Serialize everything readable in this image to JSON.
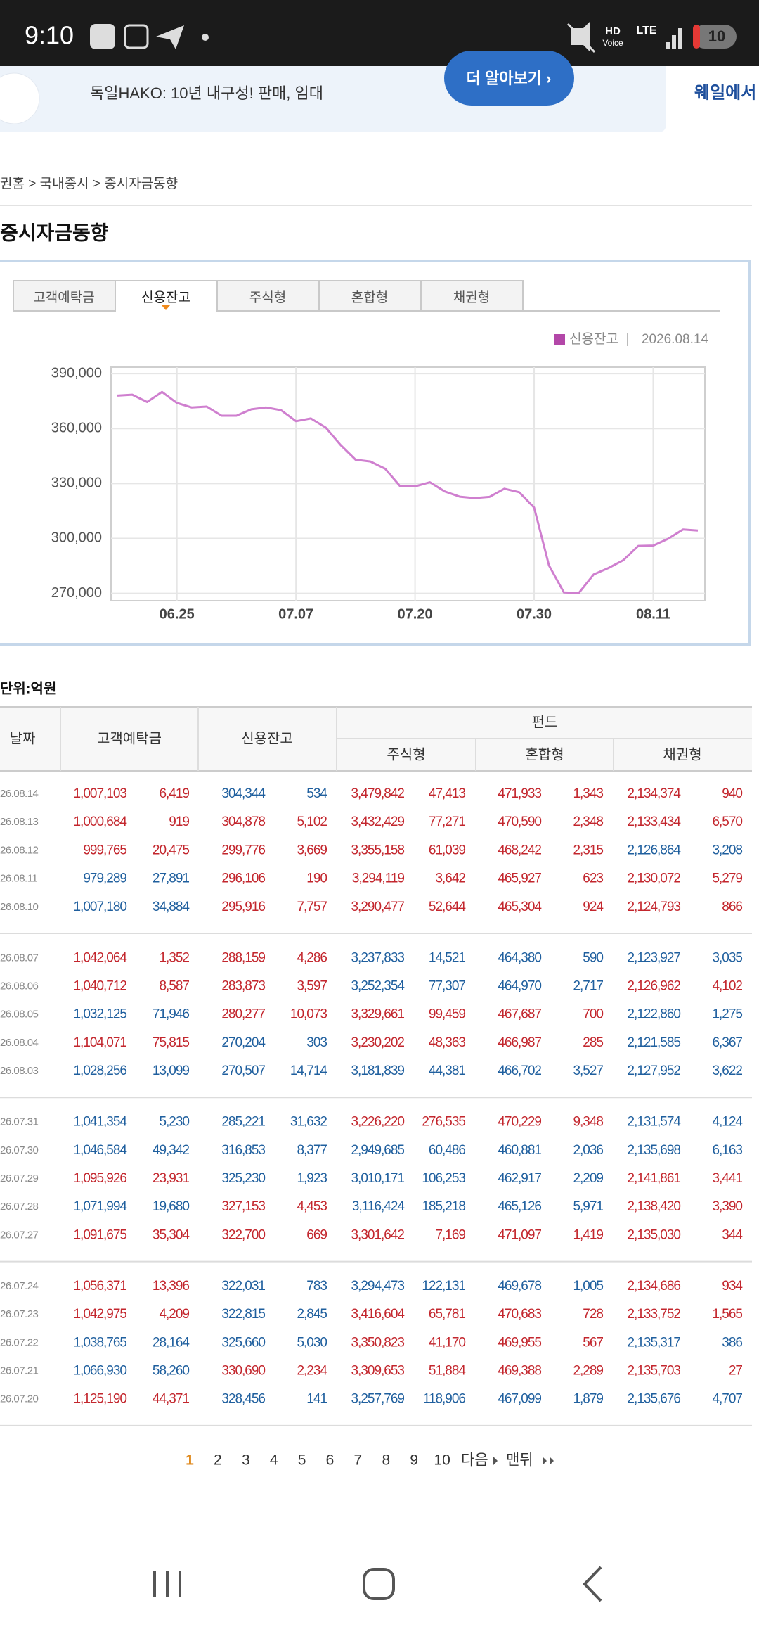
{
  "status": {
    "time": "9:10",
    "hd": "HD",
    "voice": "Voice",
    "network": "LTE",
    "battery": "10"
  },
  "ad": {
    "text": "독일HAKO: 10년 내구성! 판매, 임대",
    "button": "더 알아보기 ›",
    "side": "웨일에서"
  },
  "breadcrumb": "권홈 > 국내증시 > 증시자금동향",
  "title": "증시자금동향",
  "tabs": {
    "items": [
      "고객예탁금",
      "신용잔고",
      "주식형",
      "혼합형",
      "채권형"
    ],
    "active": 1
  },
  "chart_data": {
    "type": "line",
    "date_label": "2026.08.14",
    "categories": [
      null,
      null,
      null,
      null,
      "06.25",
      null,
      null,
      null,
      null,
      null,
      null,
      null,
      "07.07",
      null,
      null,
      null,
      null,
      null,
      null,
      null,
      "07.20",
      null,
      null,
      null,
      null,
      null,
      null,
      null,
      "07.30",
      null,
      null,
      null,
      null,
      null,
      null,
      null,
      "08.11",
      null,
      null,
      null
    ],
    "series": [
      {
        "name": "신용잔고",
        "color": "#b347a8",
        "line_color": "#cf7fcf",
        "values": [
          378000,
          378500,
          374500,
          380000,
          374000,
          371500,
          372000,
          367000,
          367000,
          370500,
          371500,
          370000,
          364000,
          365500,
          360500,
          351000,
          343000,
          342000,
          338000,
          328500,
          328456,
          330690,
          325660,
          322815,
          322031,
          322700,
          327153,
          325230,
          316853,
          285221,
          270507,
          270204,
          280277,
          283873,
          288159,
          295916,
          296106,
          299776,
          304878,
          304344
        ]
      }
    ],
    "ylim": [
      266000,
      393500
    ],
    "yticks": [
      {
        "value": 270000,
        "label": "270,000"
      },
      {
        "value": 300000,
        "label": "300,000"
      },
      {
        "value": 330000,
        "label": "330,000"
      },
      {
        "value": 360000,
        "label": "360,000"
      },
      {
        "value": 390000,
        "label": "390,000"
      }
    ],
    "grid": true
  },
  "table": {
    "unit": "단위:억원",
    "headers": {
      "date": "날짜",
      "deposit": "고객예탁금",
      "credit": "신용잔고",
      "fund": "펀드",
      "funds": [
        "주식형",
        "혼합형",
        "채권형"
      ]
    },
    "rows": [
      {
        "date": "26.08.14",
        "cells": [
          "1,007,103",
          "6,419",
          "304,344",
          "534",
          "3,479,842",
          "47,413",
          "471,933",
          "1,343",
          "2,134,374",
          "940"
        ],
        "colors": [
          "#c3262d",
          "#1f5f9e",
          "#c3262d",
          "#c3262d",
          "#c3262d"
        ]
      },
      {
        "date": "26.08.13",
        "cells": [
          "1,000,684",
          "919",
          "304,878",
          "5,102",
          "3,432,429",
          "77,271",
          "470,590",
          "2,348",
          "2,133,434",
          "6,570"
        ],
        "colors": [
          "#c3262d",
          "#c3262d",
          "#c3262d",
          "#c3262d",
          "#c3262d"
        ]
      },
      {
        "date": "26.08.12",
        "cells": [
          "999,765",
          "20,475",
          "299,776",
          "3,669",
          "3,355,158",
          "61,039",
          "468,242",
          "2,315",
          "2,126,864",
          "3,208"
        ],
        "colors": [
          "#c3262d",
          "#c3262d",
          "#c3262d",
          "#c3262d",
          "#1f5f9e"
        ]
      },
      {
        "date": "26.08.11",
        "cells": [
          "979,289",
          "27,891",
          "296,106",
          "190",
          "3,294,119",
          "3,642",
          "465,927",
          "623",
          "2,130,072",
          "5,279"
        ],
        "colors": [
          "#1f5f9e",
          "#c3262d",
          "#c3262d",
          "#c3262d",
          "#c3262d"
        ]
      },
      {
        "date": "26.08.10",
        "cells": [
          "1,007,180",
          "34,884",
          "295,916",
          "7,757",
          "3,290,477",
          "52,644",
          "465,304",
          "924",
          "2,124,793",
          "866"
        ],
        "colors": [
          "#1f5f9e",
          "#c3262d",
          "#c3262d",
          "#c3262d",
          "#c3262d"
        ]
      },
      {
        "date": "26.08.07",
        "cells": [
          "1,042,064",
          "1,352",
          "288,159",
          "4,286",
          "3,237,833",
          "14,521",
          "464,380",
          "590",
          "2,123,927",
          "3,035"
        ],
        "colors": [
          "#c3262d",
          "#c3262d",
          "#1f5f9e",
          "#1f5f9e",
          "#1f5f9e"
        ]
      },
      {
        "date": "26.08.06",
        "cells": [
          "1,040,712",
          "8,587",
          "283,873",
          "3,597",
          "3,252,354",
          "77,307",
          "464,970",
          "2,717",
          "2,126,962",
          "4,102"
        ],
        "colors": [
          "#c3262d",
          "#c3262d",
          "#1f5f9e",
          "#1f5f9e",
          "#c3262d"
        ]
      },
      {
        "date": "26.08.05",
        "cells": [
          "1,032,125",
          "71,946",
          "280,277",
          "10,073",
          "3,329,661",
          "99,459",
          "467,687",
          "700",
          "2,122,860",
          "1,275"
        ],
        "colors": [
          "#1f5f9e",
          "#c3262d",
          "#c3262d",
          "#c3262d",
          "#1f5f9e"
        ]
      },
      {
        "date": "26.08.04",
        "cells": [
          "1,104,071",
          "75,815",
          "270,204",
          "303",
          "3,230,202",
          "48,363",
          "466,987",
          "285",
          "2,121,585",
          "6,367"
        ],
        "colors": [
          "#c3262d",
          "#1f5f9e",
          "#c3262d",
          "#c3262d",
          "#1f5f9e"
        ]
      },
      {
        "date": "26.08.03",
        "cells": [
          "1,028,256",
          "13,099",
          "270,507",
          "14,714",
          "3,181,839",
          "44,381",
          "466,702",
          "3,527",
          "2,127,952",
          "3,622"
        ],
        "colors": [
          "#1f5f9e",
          "#1f5f9e",
          "#1f5f9e",
          "#1f5f9e",
          "#1f5f9e"
        ]
      },
      {
        "date": "26.07.31",
        "cells": [
          "1,041,354",
          "5,230",
          "285,221",
          "31,632",
          "3,226,220",
          "276,535",
          "470,229",
          "9,348",
          "2,131,574",
          "4,124"
        ],
        "colors": [
          "#1f5f9e",
          "#1f5f9e",
          "#c3262d",
          "#c3262d",
          "#1f5f9e"
        ]
      },
      {
        "date": "26.07.30",
        "cells": [
          "1,046,584",
          "49,342",
          "316,853",
          "8,377",
          "2,949,685",
          "60,486",
          "460,881",
          "2,036",
          "2,135,698",
          "6,163"
        ],
        "colors": [
          "#1f5f9e",
          "#1f5f9e",
          "#1f5f9e",
          "#1f5f9e",
          "#1f5f9e"
        ]
      },
      {
        "date": "26.07.29",
        "cells": [
          "1,095,926",
          "23,931",
          "325,230",
          "1,923",
          "3,010,171",
          "106,253",
          "462,917",
          "2,209",
          "2,141,861",
          "3,441"
        ],
        "colors": [
          "#c3262d",
          "#1f5f9e",
          "#1f5f9e",
          "#1f5f9e",
          "#c3262d"
        ]
      },
      {
        "date": "26.07.28",
        "cells": [
          "1,071,994",
          "19,680",
          "327,153",
          "4,453",
          "3,116,424",
          "185,218",
          "465,126",
          "5,971",
          "2,138,420",
          "3,390"
        ],
        "colors": [
          "#1f5f9e",
          "#c3262d",
          "#1f5f9e",
          "#1f5f9e",
          "#c3262d"
        ]
      },
      {
        "date": "26.07.27",
        "cells": [
          "1,091,675",
          "35,304",
          "322,700",
          "669",
          "3,301,642",
          "7,169",
          "471,097",
          "1,419",
          "2,135,030",
          "344"
        ],
        "colors": [
          "#c3262d",
          "#c3262d",
          "#c3262d",
          "#c3262d",
          "#c3262d"
        ]
      },
      {
        "date": "26.07.24",
        "cells": [
          "1,056,371",
          "13,396",
          "322,031",
          "783",
          "3,294,473",
          "122,131",
          "469,678",
          "1,005",
          "2,134,686",
          "934"
        ],
        "colors": [
          "#c3262d",
          "#1f5f9e",
          "#1f5f9e",
          "#1f5f9e",
          "#c3262d"
        ]
      },
      {
        "date": "26.07.23",
        "cells": [
          "1,042,975",
          "4,209",
          "322,815",
          "2,845",
          "3,416,604",
          "65,781",
          "470,683",
          "728",
          "2,133,752",
          "1,565"
        ],
        "colors": [
          "#c3262d",
          "#1f5f9e",
          "#c3262d",
          "#c3262d",
          "#c3262d"
        ]
      },
      {
        "date": "26.07.22",
        "cells": [
          "1,038,765",
          "28,164",
          "325,660",
          "5,030",
          "3,350,823",
          "41,170",
          "469,955",
          "567",
          "2,135,317",
          "386"
        ],
        "colors": [
          "#1f5f9e",
          "#1f5f9e",
          "#c3262d",
          "#c3262d",
          "#1f5f9e"
        ]
      },
      {
        "date": "26.07.21",
        "cells": [
          "1,066,930",
          "58,260",
          "330,690",
          "2,234",
          "3,309,653",
          "51,884",
          "469,388",
          "2,289",
          "2,135,703",
          "27"
        ],
        "colors": [
          "#1f5f9e",
          "#c3262d",
          "#c3262d",
          "#c3262d",
          "#c3262d"
        ]
      },
      {
        "date": "26.07.20",
        "cells": [
          "1,125,190",
          "44,371",
          "328,456",
          "141",
          "3,257,769",
          "118,906",
          "467,099",
          "1,879",
          "2,135,676",
          "4,707"
        ],
        "colors": [
          "#c3262d",
          "#1f5f9e",
          "#1f5f9e",
          "#1f5f9e",
          "#1f5f9e"
        ]
      }
    ]
  },
  "pagination": {
    "pages": [
      "1",
      "2",
      "3",
      "4",
      "5",
      "6",
      "7",
      "8",
      "9",
      "10"
    ],
    "current": 0,
    "next": "다음",
    "last": "맨뒤"
  }
}
